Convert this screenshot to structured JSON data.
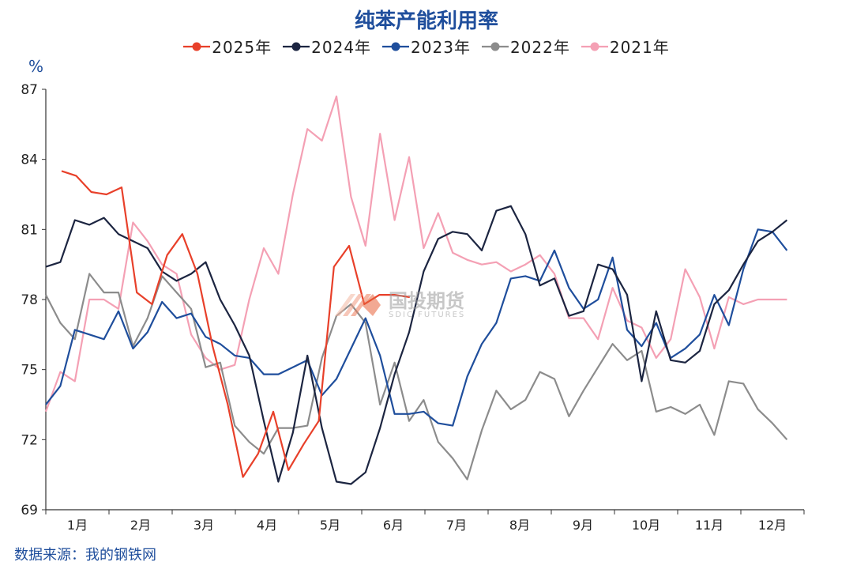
{
  "chart_data": {
    "type": "line",
    "title": "纯苯产能利用率",
    "ylabel": "%",
    "ylim": [
      69,
      87
    ],
    "yticks": [
      "69",
      "72",
      "75",
      "78",
      "81",
      "84",
      "87"
    ],
    "xlim": [
      0,
      12
    ],
    "month_labels": [
      "1月",
      "2月",
      "3月",
      "4月",
      "5月",
      "6月",
      "7月",
      "8月",
      "9月",
      "10月",
      "11月",
      "12月"
    ],
    "grid": false,
    "legend_position": "top",
    "source": "数据来源：我的钢铁网",
    "watermark_cn": "国投期货",
    "watermark_en": "SDIC FUTURES",
    "series": [
      {
        "name": "2025年",
        "color": "#e8402a",
        "x": [
          0.25,
          0.48,
          0.72,
          0.96,
          1.2,
          1.44,
          1.68,
          1.92,
          2.16,
          2.4,
          2.64,
          2.88,
          3.12,
          3.36,
          3.6,
          3.84,
          4.08,
          4.32,
          4.56,
          4.8,
          5.04,
          5.28,
          5.52,
          5.76
        ],
        "values": [
          83.5,
          83.3,
          82.6,
          82.5,
          82.8,
          78.3,
          77.8,
          79.9,
          80.8,
          79.1,
          76.0,
          73.5,
          70.4,
          71.4,
          73.2,
          70.7,
          71.8,
          72.8,
          79.4,
          80.3,
          77.8,
          78.2,
          78.2,
          78.1
        ]
      },
      {
        "name": "2024年",
        "color": "#1c2541",
        "x": [
          0.0,
          0.23,
          0.46,
          0.69,
          0.92,
          1.15,
          1.38,
          1.61,
          1.84,
          2.07,
          2.3,
          2.53,
          2.76,
          2.99,
          3.22,
          3.45,
          3.68,
          3.91,
          4.14,
          4.37,
          4.6,
          4.83,
          5.06,
          5.29,
          5.52,
          5.75,
          5.98,
          6.21,
          6.44,
          6.67,
          6.9,
          7.13,
          7.36,
          7.59,
          7.82,
          8.05,
          8.28,
          8.51,
          8.74,
          8.97,
          9.2,
          9.43,
          9.66,
          9.89,
          10.12,
          10.35,
          10.58,
          10.81,
          11.04,
          11.27,
          11.5,
          11.73
        ],
        "values": [
          79.4,
          79.6,
          81.4,
          81.2,
          81.5,
          80.8,
          80.5,
          80.2,
          79.2,
          78.8,
          79.1,
          79.6,
          78.0,
          76.9,
          75.6,
          72.8,
          70.2,
          72.3,
          75.6,
          72.5,
          70.2,
          70.1,
          70.6,
          72.5,
          74.8,
          76.6,
          79.2,
          80.6,
          80.9,
          80.8,
          80.1,
          81.8,
          82.0,
          80.8,
          78.6,
          78.9,
          77.3,
          77.5,
          79.5,
          79.3,
          78.2,
          74.5,
          77.5,
          75.4,
          75.3,
          75.8,
          77.8,
          78.4,
          79.5,
          80.5,
          80.9,
          81.4
        ]
      },
      {
        "name": "2023年",
        "color": "#1f4e9c",
        "x": [
          0.0,
          0.23,
          0.46,
          0.69,
          0.92,
          1.15,
          1.38,
          1.61,
          1.84,
          2.07,
          2.3,
          2.53,
          2.76,
          2.99,
          3.22,
          3.45,
          3.68,
          3.91,
          4.14,
          4.37,
          4.6,
          4.83,
          5.06,
          5.29,
          5.52,
          5.75,
          5.98,
          6.21,
          6.44,
          6.67,
          6.9,
          7.13,
          7.36,
          7.59,
          7.82,
          8.05,
          8.28,
          8.51,
          8.74,
          8.97,
          9.2,
          9.43,
          9.66,
          9.89,
          10.12,
          10.35,
          10.58,
          10.81,
          11.04,
          11.27,
          11.5,
          11.73
        ],
        "values": [
          73.5,
          74.3,
          76.7,
          76.5,
          76.3,
          77.5,
          75.9,
          76.6,
          77.9,
          77.2,
          77.4,
          76.4,
          76.1,
          75.6,
          75.5,
          74.8,
          74.8,
          75.1,
          75.4,
          73.9,
          74.6,
          75.9,
          77.2,
          75.6,
          73.1,
          73.1,
          73.2,
          72.7,
          72.6,
          74.7,
          76.1,
          77.0,
          78.9,
          79.0,
          78.8,
          80.1,
          78.5,
          77.6,
          78.0,
          79.8,
          76.7,
          76.0,
          77.0,
          75.5,
          75.9,
          76.5,
          78.2,
          76.9,
          79.3,
          81.0,
          80.9,
          80.1
        ]
      },
      {
        "name": "2022年",
        "color": "#8c8c8c",
        "x": [
          0.0,
          0.23,
          0.46,
          0.69,
          0.92,
          1.15,
          1.38,
          1.61,
          1.84,
          2.07,
          2.3,
          2.53,
          2.76,
          2.99,
          3.22,
          3.45,
          3.68,
          3.91,
          4.14,
          4.37,
          4.6,
          4.83,
          5.06,
          5.29,
          5.52,
          5.75,
          5.98,
          6.21,
          6.44,
          6.67,
          6.9,
          7.13,
          7.36,
          7.59,
          7.82,
          8.05,
          8.28,
          8.51,
          8.74,
          8.97,
          9.2,
          9.43,
          9.66,
          9.89,
          10.12,
          10.35,
          10.58,
          10.81,
          11.04,
          11.27,
          11.5,
          11.73
        ],
        "values": [
          78.2,
          77.0,
          76.3,
          79.1,
          78.3,
          78.3,
          76.0,
          77.2,
          79.0,
          78.3,
          77.6,
          75.1,
          75.3,
          72.6,
          71.9,
          71.4,
          72.5,
          72.5,
          72.6,
          75.5,
          77.3,
          77.8,
          77.0,
          73.5,
          75.3,
          72.8,
          73.7,
          71.9,
          71.2,
          70.3,
          72.4,
          74.1,
          73.3,
          73.7,
          74.9,
          74.6,
          73.0,
          74.1,
          75.1,
          76.1,
          75.4,
          75.8,
          73.2,
          73.4,
          73.1,
          73.5,
          72.2,
          74.5,
          74.4,
          73.3,
          72.7,
          72.0
        ]
      },
      {
        "name": "2021年",
        "color": "#f4a0b4",
        "x": [
          0.0,
          0.23,
          0.46,
          0.69,
          0.92,
          1.15,
          1.38,
          1.61,
          1.84,
          2.07,
          2.3,
          2.53,
          2.76,
          2.99,
          3.22,
          3.45,
          3.68,
          3.91,
          4.14,
          4.37,
          4.6,
          4.83,
          5.06,
          5.29,
          5.52,
          5.75,
          5.98,
          6.21,
          6.44,
          6.67,
          6.9,
          7.13,
          7.36,
          7.59,
          7.82,
          8.05,
          8.28,
          8.51,
          8.74,
          8.97,
          9.2,
          9.43,
          9.66,
          9.89,
          10.12,
          10.35,
          10.58,
          10.81,
          11.04,
          11.27,
          11.5,
          11.73
        ],
        "values": [
          73.2,
          74.9,
          74.5,
          78.0,
          78.0,
          77.6,
          81.3,
          80.5,
          79.5,
          79.1,
          76.5,
          75.5,
          75.0,
          75.2,
          78.0,
          80.2,
          79.1,
          82.5,
          85.3,
          84.8,
          86.7,
          82.4,
          80.3,
          85.1,
          81.4,
          84.1,
          80.2,
          81.7,
          80.0,
          79.7,
          79.5,
          79.6,
          79.2,
          79.5,
          79.9,
          79.1,
          77.2,
          77.2,
          76.3,
          78.5,
          77.1,
          76.8,
          75.5,
          76.3,
          79.3,
          78.1,
          75.9,
          78.1,
          77.8,
          78.0,
          78.0,
          78.0
        ]
      }
    ]
  }
}
